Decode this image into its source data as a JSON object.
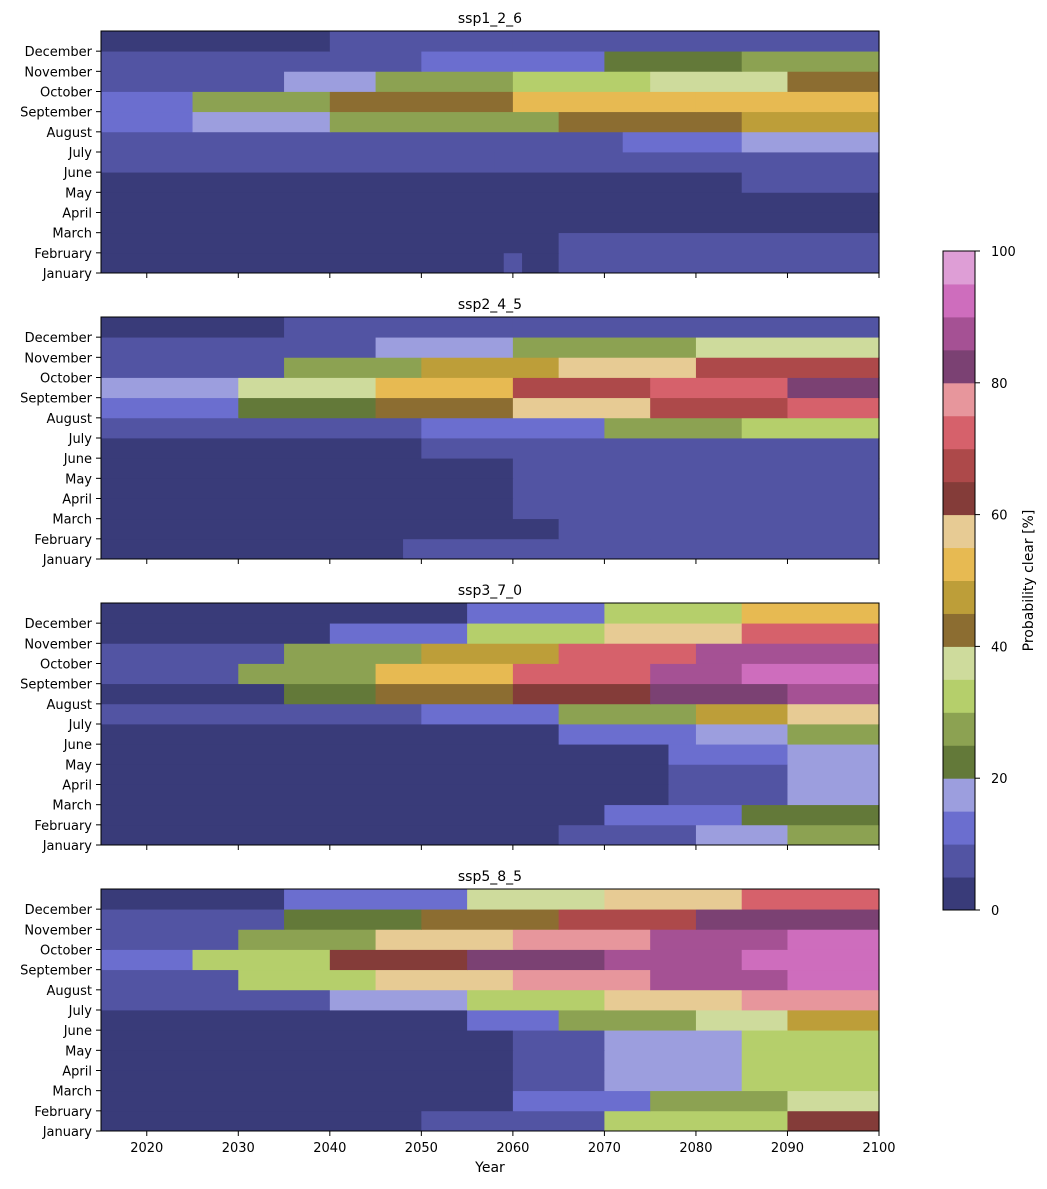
{
  "chart_data": {
    "type": "heatmap",
    "xlabel": "Year",
    "x_range": [
      2015,
      2100
    ],
    "x_ticks": [
      "2020",
      "2030",
      "2040",
      "2050",
      "2060",
      "2070",
      "2080",
      "2090",
      "2100"
    ],
    "y_categories": [
      "January",
      "February",
      "March",
      "April",
      "May",
      "June",
      "July",
      "August",
      "September",
      "October",
      "November",
      "December"
    ],
    "colorbar": {
      "label": "Probability clear [%]",
      "range": [
        0,
        100
      ],
      "ticks": [
        "0",
        "20",
        "40",
        "60",
        "80",
        "100"
      ],
      "bins": 20,
      "colors": [
        "#393b79",
        "#5254a3",
        "#6b6ecf",
        "#9c9ede",
        "#637939",
        "#8ca252",
        "#b5cf6b",
        "#cedb9c",
        "#8c6d31",
        "#bd9e39",
        "#e7ba52",
        "#e7cb94",
        "#843c39",
        "#ad494a",
        "#d6616b",
        "#e7969c",
        "#7b4173",
        "#a55194",
        "#ce6dbd",
        "#de9ed6"
      ]
    },
    "panels": [
      {
        "title": "ssp1_2_6",
        "rows": {
          "January": [
            [
              2015,
              2059,
              2
            ],
            [
              2059,
              2061,
              8
            ],
            [
              2061,
              2065,
              4
            ],
            [
              2065,
              2100,
              8
            ]
          ],
          "February": [
            [
              2015,
              2065,
              3
            ],
            [
              2065,
              2100,
              6
            ]
          ],
          "March": [
            [
              2015,
              2100,
              3
            ]
          ],
          "April": [
            [
              2015,
              2100,
              4
            ]
          ],
          "May": [
            [
              2015,
              2085,
              4
            ],
            [
              2085,
              2100,
              7
            ]
          ],
          "June": [
            [
              2015,
              2058,
              6
            ],
            [
              2058,
              2100,
              8
            ]
          ],
          "July": [
            [
              2015,
              2072,
              8
            ],
            [
              2072,
              2085,
              12
            ],
            [
              2085,
              2100,
              15
            ]
          ],
          "August": [
            [
              2015,
              2025,
              10
            ],
            [
              2025,
              2040,
              16
            ],
            [
              2040,
              2065,
              28
            ],
            [
              2065,
              2085,
              40
            ],
            [
              2085,
              2100,
              45
            ]
          ],
          "September": [
            [
              2015,
              2025,
              14
            ],
            [
              2025,
              2040,
              25
            ],
            [
              2040,
              2060,
              40
            ],
            [
              2060,
              2080,
              52
            ],
            [
              2080,
              2100,
              50
            ]
          ],
          "October": [
            [
              2015,
              2035,
              8
            ],
            [
              2035,
              2045,
              18
            ],
            [
              2045,
              2060,
              27
            ],
            [
              2060,
              2075,
              33
            ],
            [
              2075,
              2090,
              37
            ],
            [
              2090,
              2100,
              42
            ]
          ],
          "November": [
            [
              2015,
              2050,
              7
            ],
            [
              2050,
              2070,
              10
            ],
            [
              2070,
              2085,
              22
            ],
            [
              2085,
              2100,
              27
            ]
          ],
          "December": [
            [
              2015,
              2040,
              2
            ],
            [
              2040,
              2060,
              6
            ],
            [
              2060,
              2100,
              8
            ]
          ]
        }
      },
      {
        "title": "ssp2_4_5",
        "rows": {
          "January": [
            [
              2015,
              2048,
              2
            ],
            [
              2048,
              2075,
              7
            ],
            [
              2075,
              2100,
              9
            ]
          ],
          "February": [
            [
              2015,
              2065,
              3
            ],
            [
              2065,
              2100,
              6
            ]
          ],
          "March": [
            [
              2015,
              2060,
              3
            ],
            [
              2060,
              2100,
              6
            ]
          ],
          "April": [
            [
              2015,
              2060,
              3
            ],
            [
              2060,
              2100,
              6
            ]
          ],
          "May": [
            [
              2015,
              2060,
              3
            ],
            [
              2060,
              2100,
              7
            ]
          ],
          "June": [
            [
              2015,
              2050,
              4
            ],
            [
              2050,
              2100,
              8
            ]
          ],
          "July": [
            [
              2015,
              2050,
              8
            ],
            [
              2050,
              2070,
              12
            ],
            [
              2070,
              2085,
              26
            ],
            [
              2085,
              2100,
              33
            ]
          ],
          "August": [
            [
              2015,
              2030,
              12
            ],
            [
              2030,
              2045,
              20
            ],
            [
              2045,
              2060,
              43
            ],
            [
              2060,
              2075,
              58
            ],
            [
              2075,
              2090,
              67
            ],
            [
              2090,
              2100,
              74
            ]
          ],
          "September": [
            [
              2015,
              2030,
              16
            ],
            [
              2030,
              2045,
              36
            ],
            [
              2045,
              2060,
              52
            ],
            [
              2060,
              2075,
              65
            ],
            [
              2075,
              2090,
              72
            ],
            [
              2090,
              2100,
              82
            ]
          ],
          "October": [
            [
              2015,
              2035,
              9
            ],
            [
              2035,
              2050,
              27
            ],
            [
              2050,
              2065,
              45
            ],
            [
              2065,
              2080,
              55
            ],
            [
              2080,
              2100,
              69
            ]
          ],
          "November": [
            [
              2015,
              2045,
              7
            ],
            [
              2045,
              2060,
              15
            ],
            [
              2060,
              2080,
              27
            ],
            [
              2080,
              2100,
              38
            ]
          ],
          "December": [
            [
              2015,
              2035,
              2
            ],
            [
              2035,
              2060,
              6
            ],
            [
              2060,
              2100,
              9
            ]
          ]
        }
      },
      {
        "title": "ssp3_7_0",
        "rows": {
          "January": [
            [
              2015,
              2065,
              2
            ],
            [
              2065,
              2080,
              7
            ],
            [
              2080,
              2090,
              18
            ],
            [
              2090,
              2100,
              25
            ]
          ],
          "February": [
            [
              2015,
              2070,
              3
            ],
            [
              2070,
              2085,
              11
            ],
            [
              2085,
              2100,
              22
            ]
          ],
          "March": [
            [
              2015,
              2077,
              2
            ],
            [
              2077,
              2090,
              8
            ],
            [
              2090,
              2100,
              16
            ]
          ],
          "April": [
            [
              2015,
              2077,
              2
            ],
            [
              2077,
              2090,
              8
            ],
            [
              2090,
              2100,
              16
            ]
          ],
          "May": [
            [
              2015,
              2077,
              3
            ],
            [
              2077,
              2090,
              10
            ],
            [
              2090,
              2100,
              17
            ]
          ],
          "June": [
            [
              2015,
              2065,
              4
            ],
            [
              2065,
              2080,
              10
            ],
            [
              2080,
              2090,
              19
            ],
            [
              2090,
              2100,
              27
            ]
          ],
          "July": [
            [
              2015,
              2050,
              5
            ],
            [
              2050,
              2065,
              14
            ],
            [
              2065,
              2080,
              28
            ],
            [
              2080,
              2090,
              45
            ],
            [
              2090,
              2100,
              58
            ]
          ],
          "August": [
            [
              2015,
              2035,
              4
            ],
            [
              2035,
              2045,
              20
            ],
            [
              2045,
              2060,
              40
            ],
            [
              2060,
              2075,
              62
            ],
            [
              2075,
              2090,
              83
            ],
            [
              2090,
              2100,
              88
            ]
          ],
          "September": [
            [
              2015,
              2030,
              8
            ],
            [
              2030,
              2045,
              28
            ],
            [
              2045,
              2060,
              52
            ],
            [
              2060,
              2075,
              72
            ],
            [
              2075,
              2085,
              85
            ],
            [
              2085,
              2100,
              90
            ]
          ],
          "October": [
            [
              2015,
              2035,
              6
            ],
            [
              2035,
              2050,
              25
            ],
            [
              2050,
              2065,
              48
            ],
            [
              2065,
              2080,
              72
            ],
            [
              2080,
              2100,
              85
            ]
          ],
          "November": [
            [
              2015,
              2040,
              3
            ],
            [
              2040,
              2055,
              12
            ],
            [
              2055,
              2070,
              32
            ],
            [
              2070,
              2085,
              55
            ],
            [
              2085,
              2100,
              70
            ]
          ],
          "December": [
            [
              2015,
              2055,
              2
            ],
            [
              2055,
              2070,
              14
            ],
            [
              2070,
              2085,
              32
            ],
            [
              2085,
              2100,
              50
            ]
          ]
        }
      },
      {
        "title": "ssp5_8_5",
        "rows": {
          "January": [
            [
              2015,
              2050,
              2
            ],
            [
              2050,
              2070,
              9
            ],
            [
              2070,
              2090,
              32
            ],
            [
              2090,
              2100,
              60
            ]
          ],
          "February": [
            [
              2015,
              2060,
              3
            ],
            [
              2060,
              2075,
              12
            ],
            [
              2075,
              2090,
              26
            ],
            [
              2090,
              2100,
              38
            ]
          ],
          "March": [
            [
              2015,
              2060,
              2
            ],
            [
              2060,
              2070,
              8
            ],
            [
              2070,
              2085,
              18
            ],
            [
              2085,
              2100,
              32
            ]
          ],
          "April": [
            [
              2015,
              2060,
              2
            ],
            [
              2060,
              2070,
              8
            ],
            [
              2070,
              2085,
              18
            ],
            [
              2085,
              2100,
              32
            ]
          ],
          "May": [
            [
              2015,
              2060,
              3
            ],
            [
              2060,
              2070,
              9
            ],
            [
              2070,
              2085,
              18
            ],
            [
              2085,
              2100,
              32
            ]
          ],
          "June": [
            [
              2015,
              2055,
              3
            ],
            [
              2055,
              2065,
              12
            ],
            [
              2065,
              2080,
              25
            ],
            [
              2080,
              2090,
              35
            ],
            [
              2090,
              2100,
              45
            ]
          ],
          "July": [
            [
              2015,
              2040,
              7
            ],
            [
              2040,
              2055,
              16
            ],
            [
              2055,
              2070,
              30
            ],
            [
              2070,
              2085,
              55
            ],
            [
              2085,
              2100,
              75
            ]
          ],
          "August": [
            [
              2015,
              2030,
              9
            ],
            [
              2030,
              2045,
              30
            ],
            [
              2045,
              2060,
              55
            ],
            [
              2060,
              2075,
              75
            ],
            [
              2075,
              2090,
              85
            ],
            [
              2090,
              2100,
              92
            ]
          ],
          "September": [
            [
              2015,
              2025,
              12
            ],
            [
              2025,
              2040,
              32
            ],
            [
              2040,
              2055,
              62
            ],
            [
              2055,
              2070,
              80
            ],
            [
              2070,
              2085,
              88
            ],
            [
              2085,
              2100,
              93
            ]
          ],
          "October": [
            [
              2015,
              2030,
              8
            ],
            [
              2030,
              2045,
              28
            ],
            [
              2045,
              2060,
              55
            ],
            [
              2060,
              2075,
              78
            ],
            [
              2075,
              2090,
              88
            ],
            [
              2090,
              2100,
              92
            ]
          ],
          "November": [
            [
              2015,
              2035,
              7
            ],
            [
              2035,
              2050,
              22
            ],
            [
              2050,
              2065,
              42
            ],
            [
              2065,
              2080,
              68
            ],
            [
              2080,
              2100,
              82
            ]
          ],
          "December": [
            [
              2015,
              2035,
              2
            ],
            [
              2035,
              2055,
              13
            ],
            [
              2055,
              2070,
              35
            ],
            [
              2070,
              2085,
              55
            ],
            [
              2085,
              2100,
              70
            ]
          ]
        }
      }
    ]
  }
}
